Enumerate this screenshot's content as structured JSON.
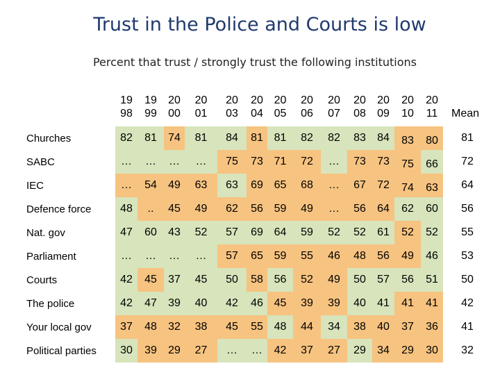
{
  "title": "Trust in the Police and Courts is low",
  "subtitle": "Percent that trust / strongly trust the following institutions",
  "years": [
    {
      "top": "19",
      "bottom": "98"
    },
    {
      "top": "19",
      "bottom": "99"
    },
    {
      "top": "20",
      "bottom": "00"
    },
    {
      "top": "20",
      "bottom": "01"
    },
    {
      "top": "20",
      "bottom": "03"
    },
    {
      "top": "20",
      "bottom": "04"
    },
    {
      "top": "20",
      "bottom": "05"
    },
    {
      "top": "20",
      "bottom": "06"
    },
    {
      "top": "20",
      "bottom": "07"
    },
    {
      "top": "20",
      "bottom": "08"
    },
    {
      "top": "20",
      "bottom": "09"
    },
    {
      "top": "20",
      "bottom": "10"
    },
    {
      "top": "20",
      "bottom": "11"
    }
  ],
  "mean_label": "Mean",
  "rows": [
    {
      "label": "Churches",
      "values": [
        "82",
        "81",
        "74",
        "81",
        "84",
        "81",
        "81",
        "82",
        "82",
        "83",
        "84",
        "83",
        "80"
      ],
      "mean": "81"
    },
    {
      "label": "SABC",
      "values": [
        "…",
        "…",
        "…",
        "…",
        "75",
        "73",
        "71",
        "72",
        "…",
        "73",
        "73",
        "75",
        "66"
      ],
      "mean": "72"
    },
    {
      "label": "IEC",
      "values": [
        "…",
        "54",
        "49",
        "63",
        "63",
        "69",
        "65",
        "68",
        "…",
        "67",
        "72",
        "74",
        "63"
      ],
      "mean": "64"
    },
    {
      "label": "Defence force",
      "values": [
        "48",
        "..",
        "45",
        "49",
        "62",
        "56",
        "59",
        "49",
        "…",
        "56",
        "64",
        "62",
        "60"
      ],
      "mean": "56"
    },
    {
      "label": "Nat. gov",
      "values": [
        "47",
        "60",
        "43",
        "52",
        "57",
        "69",
        "64",
        "59",
        "52",
        "52",
        "61",
        "52",
        "52"
      ],
      "mean": "55"
    },
    {
      "label": "Parliament",
      "values": [
        "…",
        "…",
        "…",
        "…",
        "57",
        "65",
        "59",
        "55",
        "46",
        "48",
        "56",
        "49",
        "46"
      ],
      "mean": "53"
    },
    {
      "label": "Courts",
      "values": [
        "42",
        "45",
        "37",
        "45",
        "50",
        "58",
        "56",
        "52",
        "49",
        "50",
        "57",
        "56",
        "51"
      ],
      "mean": "50"
    },
    {
      "label": "The police",
      "values": [
        "42",
        "47",
        "39",
        "40",
        "42",
        "46",
        "45",
        "39",
        "39",
        "40",
        "41",
        "41",
        "41"
      ],
      "mean": "42"
    },
    {
      "label": "Your local gov",
      "values": [
        "37",
        "48",
        "32",
        "38",
        "45",
        "55",
        "48",
        "44",
        "34",
        "38",
        "40",
        "37",
        "36"
      ],
      "mean": "41"
    },
    {
      "label": "Political parties",
      "values": [
        "30",
        "39",
        "29",
        "27",
        "…",
        "…",
        "42",
        "37",
        "27",
        "29",
        "34",
        "29",
        "30"
      ],
      "mean": "32"
    }
  ],
  "colors": {
    "green": "#d7e4bc",
    "orange": "#f7c380",
    "title": "#1f3a6e"
  }
}
